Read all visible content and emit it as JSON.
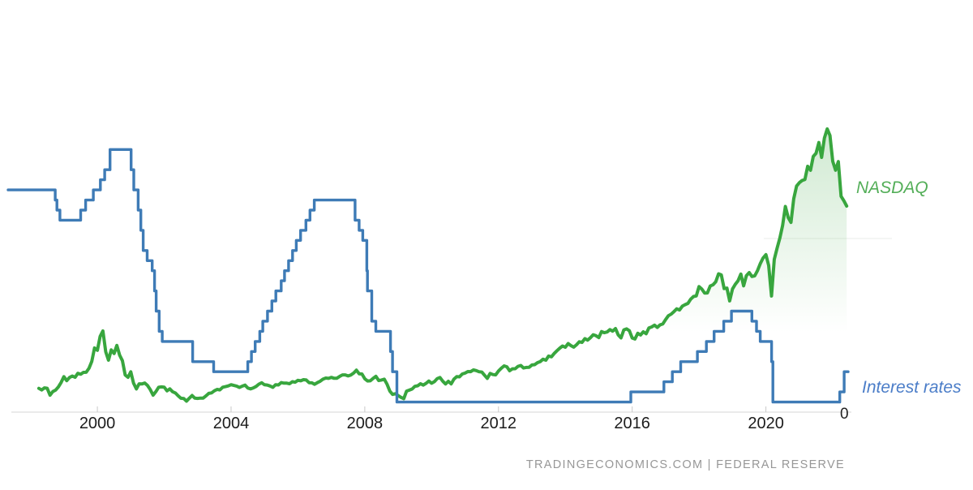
{
  "labels": {
    "nasdaq": "NASDAQ",
    "rates": "Interest rates",
    "zero": "0",
    "watermark": "TRADINGECONOMICS.COM | FEDERAL RESERVE"
  },
  "colors": {
    "nasdaq_line": "#38a63e",
    "nasdaq_label": "#53ae58",
    "rates_line": "#3e7bb6",
    "rates_label": "#4b7dc8",
    "axis": "#d6d6d6",
    "tick": "#c9c9c9",
    "tick_label": "#1c1c1c",
    "zero_label": "#222222",
    "watermark": "#979797",
    "gridline": "#e9ede9"
  },
  "chart_data": {
    "type": "line",
    "title": "NASDAQ vs Interest rates",
    "legend_position": "right-inline",
    "grid": "off",
    "x_ticks": [
      2000,
      2004,
      2008,
      2012,
      2016,
      2020
    ],
    "axes": {
      "x": {
        "domain": [
          1997.33,
          2022.46
        ],
        "range": [
          10,
          1046
        ]
      },
      "y_nasdaq": {
        "domain": [
          0,
          17500
        ],
        "range": [
          521,
          125
        ]
      },
      "y_rates": {
        "domain": [
          0,
          7
        ],
        "range": [
          508,
          159.4
        ]
      }
    },
    "series": [
      {
        "id": "nasdaq",
        "name": "NASDAQ",
        "type": "area-line",
        "unit": "index points",
        "start_year": 1998.25,
        "step_years": 0.0833333,
        "values": [
          1868,
          1779,
          1895,
          1872,
          1499,
          1694,
          1771,
          1950,
          2193,
          2506,
          2288,
          2461,
          2543,
          2471,
          2686,
          2638,
          2739,
          2746,
          2966,
          3336,
          4069,
          3940,
          4697,
          5000,
          3861,
          3401,
          3966,
          3767,
          4206,
          3673,
          3370,
          2598,
          2470,
          2773,
          2152,
          1840,
          2116,
          2110,
          2161,
          2027,
          1805,
          1498,
          1690,
          1930,
          1950,
          1934,
          1731,
          1845,
          1688,
          1616,
          1463,
          1328,
          1315,
          1172,
          1330,
          1479,
          1336,
          1321,
          1338,
          1341,
          1464,
          1596,
          1623,
          1735,
          1810,
          1787,
          1932,
          1960,
          2003,
          2066,
          2030,
          1994,
          1920,
          1987,
          2048,
          1887,
          1838,
          1897,
          1975,
          2097,
          2175,
          2062,
          2052,
          1999,
          1922,
          2068,
          2057,
          2185,
          2152,
          2152,
          2120,
          2233,
          2205,
          2306,
          2281,
          2340,
          2323,
          2179,
          2172,
          2091,
          2184,
          2258,
          2367,
          2432,
          2415,
          2464,
          2416,
          2422,
          2525,
          2605,
          2603,
          2546,
          2596,
          2702,
          2859,
          2661,
          2652,
          2390,
          2271,
          2279,
          2413,
          2523,
          2293,
          2326,
          2368,
          2092,
          1721,
          1536,
          1577,
          1476,
          1378,
          1310,
          1717,
          1774,
          1835,
          1979,
          2009,
          2122,
          2045,
          2145,
          2269,
          2147,
          2238,
          2398,
          2461,
          2257,
          2109,
          2255,
          2114,
          2369,
          2507,
          2498,
          2653,
          2700,
          2782,
          2781,
          2874,
          2835,
          2774,
          2756,
          2579,
          2415,
          2684,
          2620,
          2605,
          2814,
          2967,
          3092,
          3046,
          2827,
          2935,
          2940,
          3067,
          3116,
          2977,
          3010,
          3020,
          3142,
          3160,
          3268,
          3329,
          3456,
          3403,
          3626,
          3590,
          3771,
          3920,
          4060,
          4177,
          4104,
          4308,
          4199,
          4115,
          4243,
          4408,
          4370,
          4580,
          4493,
          4631,
          4792,
          4736,
          4635,
          4964,
          4901,
          4941,
          5070,
          4987,
          5128,
          4777,
          4620,
          5054,
          5109,
          5007,
          4614,
          4558,
          4870,
          4775,
          4948,
          4843,
          5162,
          5213,
          5312,
          5189,
          5324,
          5383,
          5615,
          5825,
          5912,
          6048,
          6199,
          6140,
          6348,
          6429,
          6496,
          6728,
          6874,
          6903,
          7411,
          7273,
          7063,
          7066,
          7442,
          7510,
          7672,
          8110,
          8046,
          7306,
          7331,
          6635,
          7282,
          7533,
          7729,
          8095,
          7453,
          8006,
          8175,
          7963,
          7999,
          8292,
          8665,
          8973,
          9151,
          8567,
          6900,
          8890,
          9490,
          10059,
          10745,
          11775,
          11168,
          10912,
          12199,
          12888,
          13071,
          13192,
          13247,
          13963,
          13749,
          14504,
          14673,
          15259,
          14449,
          15498,
          16000,
          15645,
          14240,
          13751,
          14221,
          12335,
          12081,
          11800
        ]
      },
      {
        "id": "rates",
        "name": "Interest rates",
        "type": "step-line",
        "unit": "percent",
        "end_year": 2022.46,
        "points": [
          [
            1997.33,
            5.5
          ],
          [
            1998.74,
            5.25
          ],
          [
            1998.79,
            5.0
          ],
          [
            1998.88,
            4.75
          ],
          [
            1999.5,
            5.0
          ],
          [
            1999.65,
            5.25
          ],
          [
            1999.88,
            5.5
          ],
          [
            2000.09,
            5.75
          ],
          [
            2000.22,
            6.0
          ],
          [
            2000.38,
            6.5
          ],
          [
            2001.01,
            6.0
          ],
          [
            2001.09,
            5.5
          ],
          [
            2001.22,
            5.0
          ],
          [
            2001.3,
            4.5
          ],
          [
            2001.37,
            4.0
          ],
          [
            2001.49,
            3.75
          ],
          [
            2001.64,
            3.5
          ],
          [
            2001.71,
            3.0
          ],
          [
            2001.76,
            2.5
          ],
          [
            2001.85,
            2.0
          ],
          [
            2001.94,
            1.75
          ],
          [
            2002.85,
            1.25
          ],
          [
            2003.48,
            1.0
          ],
          [
            2004.5,
            1.25
          ],
          [
            2004.61,
            1.5
          ],
          [
            2004.72,
            1.75
          ],
          [
            2004.86,
            2.0
          ],
          [
            2004.95,
            2.25
          ],
          [
            2005.09,
            2.5
          ],
          [
            2005.22,
            2.75
          ],
          [
            2005.34,
            3.0
          ],
          [
            2005.5,
            3.25
          ],
          [
            2005.6,
            3.5
          ],
          [
            2005.72,
            3.75
          ],
          [
            2005.84,
            4.0
          ],
          [
            2005.95,
            4.25
          ],
          [
            2006.08,
            4.5
          ],
          [
            2006.24,
            4.75
          ],
          [
            2006.36,
            5.0
          ],
          [
            2006.49,
            5.25
          ],
          [
            2007.71,
            4.75
          ],
          [
            2007.83,
            4.5
          ],
          [
            2007.94,
            4.25
          ],
          [
            2008.06,
            3.5
          ],
          [
            2008.08,
            3.0
          ],
          [
            2008.21,
            2.25
          ],
          [
            2008.33,
            2.0
          ],
          [
            2008.77,
            1.5
          ],
          [
            2008.83,
            1.0
          ],
          [
            2008.96,
            0.25
          ],
          [
            2015.96,
            0.5
          ],
          [
            2016.95,
            0.75
          ],
          [
            2017.2,
            1.0
          ],
          [
            2017.45,
            1.25
          ],
          [
            2017.95,
            1.5
          ],
          [
            2018.22,
            1.75
          ],
          [
            2018.45,
            2.0
          ],
          [
            2018.74,
            2.25
          ],
          [
            2018.97,
            2.5
          ],
          [
            2019.58,
            2.25
          ],
          [
            2019.72,
            2.0
          ],
          [
            2019.83,
            1.75
          ],
          [
            2020.17,
            1.25
          ],
          [
            2020.21,
            0.25
          ],
          [
            2022.21,
            0.5
          ],
          [
            2022.34,
            1.0
          ]
        ]
      }
    ]
  }
}
